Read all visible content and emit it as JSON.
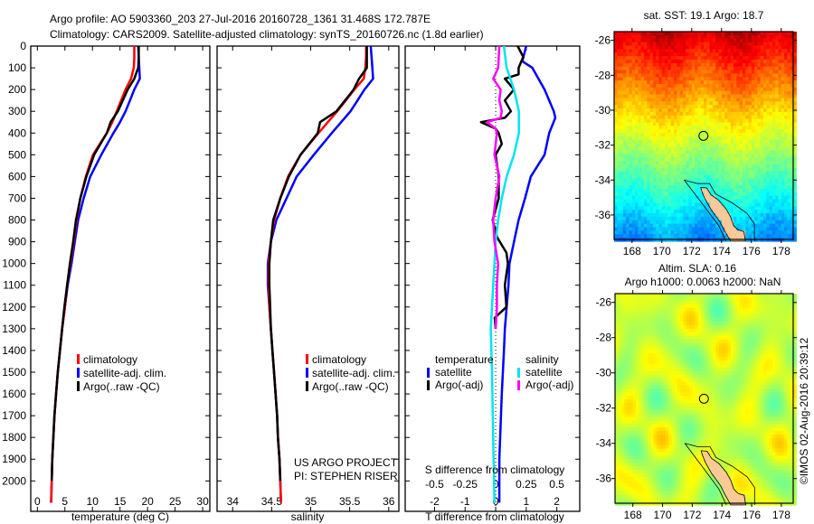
{
  "title": {
    "line1": "Argo profile: AO 5903360_203 27-Jul-2016 20160728_1361 31.468S 172.787E",
    "line2": "Climatology: CARS2009. Satellite-adjusted climatology: synTS_20160726.nc (1.8d earlier)"
  },
  "colors": {
    "climatology": "#ff0000",
    "satellite": "#0000ff",
    "argo": "#000000",
    "s_satellite": "#00e5ee",
    "s_argo": "#ff00ff",
    "land": "#fcc897"
  },
  "chart_data": [
    {
      "type": "line",
      "name": "temperature-profile",
      "xlabel": "temperature (deg C)",
      "ylabel": "",
      "xlim": [
        -1.2,
        31.3
      ],
      "ylim": [
        2140,
        0
      ],
      "xticks": [
        0,
        5,
        10,
        15,
        20,
        25,
        30
      ],
      "yticks": [
        0,
        100,
        200,
        300,
        400,
        500,
        600,
        700,
        800,
        900,
        1000,
        1100,
        1200,
        1300,
        1400,
        1500,
        1600,
        1700,
        1800,
        1900,
        2000
      ],
      "depth": [
        0,
        50,
        100,
        150,
        200,
        250,
        300,
        350,
        400,
        500,
        600,
        700,
        800,
        900,
        1000,
        1100,
        1200,
        1300,
        1400,
        1500,
        1600,
        1700,
        1800,
        1900,
        2000,
        2100
      ],
      "series": [
        {
          "name": "climatology",
          "color": "#ff0000",
          "values": [
            17.6,
            17.6,
            17.5,
            17.0,
            16.0,
            15.2,
            14.4,
            13.6,
            12.6,
            10.1,
            8.8,
            7.8,
            7.1,
            6.6,
            6.0,
            5.4,
            5.0,
            4.5,
            4.1,
            3.7,
            3.4,
            3.1,
            2.9,
            2.7,
            2.6,
            2.5
          ]
        },
        {
          "name": "satellite-adj. clim.",
          "color": "#0000ff",
          "values": [
            18.3,
            18.4,
            18.5,
            18.6,
            17.6,
            16.8,
            16.0,
            15.0,
            13.8,
            11.6,
            9.6,
            8.4,
            7.4,
            6.8,
            6.2,
            5.5,
            5.0,
            4.5,
            4.1,
            3.7,
            3.4,
            3.1,
            2.9,
            2.7,
            2.6,
            2.5
          ]
        },
        {
          "name": "Argo(..raw -QC)",
          "color": "#000000",
          "values": [
            18.4,
            18.4,
            18.3,
            17.6,
            16.4,
            15.5,
            14.6,
            13.3,
            12.6,
            10.3,
            8.9,
            7.8,
            7.0,
            6.5,
            5.9,
            5.4,
            4.9,
            4.5,
            4.1,
            3.7,
            3.4,
            3.1,
            2.9,
            2.7,
            2.6,
            null
          ]
        }
      ]
    },
    {
      "type": "line",
      "name": "salinity-profile",
      "xlabel": "salinity",
      "xlim": [
        33.8,
        36.13
      ],
      "ylim": [
        2140,
        0
      ],
      "xticks": [
        34,
        34.5,
        35,
        35.5,
        36
      ],
      "depth": [
        0,
        50,
        100,
        150,
        200,
        250,
        300,
        350,
        400,
        500,
        600,
        700,
        800,
        900,
        1000,
        1100,
        1200,
        1300,
        1400,
        1500,
        1600,
        1700,
        1800,
        1900,
        2000,
        2100
      ],
      "series": [
        {
          "name": "climatology",
          "color": "#ff0000",
          "values": [
            35.71,
            35.71,
            35.7,
            35.68,
            35.56,
            35.45,
            35.34,
            35.22,
            35.1,
            34.87,
            34.71,
            34.61,
            34.53,
            34.49,
            34.46,
            34.46,
            34.47,
            34.49,
            34.51,
            34.53,
            34.55,
            34.57,
            34.58,
            34.6,
            34.61,
            34.62
          ]
        },
        {
          "name": "satellite-adj. clim.",
          "color": "#0000ff",
          "values": [
            35.77,
            35.78,
            35.79,
            35.8,
            35.69,
            35.6,
            35.51,
            35.39,
            35.27,
            35.04,
            34.82,
            34.69,
            34.56,
            34.49,
            34.45,
            34.45,
            34.47,
            34.49,
            34.51,
            34.53,
            34.55,
            34.57,
            34.58,
            34.6,
            34.61,
            34.62
          ]
        },
        {
          "name": "Argo(..raw -QC)",
          "color": "#000000",
          "values": [
            35.72,
            35.72,
            35.72,
            35.62,
            35.55,
            35.44,
            35.33,
            35.12,
            35.09,
            34.87,
            34.72,
            34.61,
            34.52,
            34.49,
            34.47,
            34.47,
            34.48,
            34.49,
            34.51,
            34.53,
            34.55,
            34.57,
            34.58,
            34.6,
            34.61,
            null
          ]
        }
      ],
      "annotations": [
        "US ARGO PROJECT",
        "PI: STEPHEN RISER"
      ]
    },
    {
      "type": "line",
      "name": "difference-profile",
      "xlabel": "T difference from climatology",
      "x2label": "S difference from climatology",
      "xlim": [
        -2.96,
        2.75
      ],
      "ylim": [
        2140,
        0
      ],
      "xticks": [
        -2,
        -1,
        0,
        1,
        2
      ],
      "x2ticks": [
        -0.5,
        -0.25,
        0,
        0.25,
        0.5
      ],
      "x2tick_labels": [
        "-0.5",
        "-0.25",
        "0",
        "0.25",
        "0.5"
      ],
      "legend_headers": {
        "temperature": "temperature",
        "salinity": "salinity"
      },
      "series": [
        {
          "name": "satellite",
          "group": "temperature",
          "color": "#0000ff",
          "depth": [
            0,
            70,
            100,
            200,
            300,
            330,
            400,
            500,
            600,
            700,
            800,
            900,
            1000,
            1100,
            1200,
            1300,
            1400,
            1600,
            1900,
            2100
          ],
          "values": [
            1.0,
            0.87,
            1.2,
            1.6,
            1.9,
            1.95,
            1.75,
            1.6,
            1.15,
            0.96,
            0.75,
            0.6,
            0.45,
            0.42,
            0.36,
            0.3,
            0.27,
            0.2,
            0.12,
            0.12
          ]
        },
        {
          "name": "Argo(-adj)",
          "group": "temperature",
          "color": "#000000",
          "depth": [
            0,
            50,
            100,
            130,
            150,
            200,
            250,
            300,
            330,
            350,
            380,
            400,
            450,
            500,
            600,
            700,
            800,
            880,
            950,
            1000,
            1100,
            1200,
            1250,
            1300
          ],
          "values": [
            0.72,
            0.9,
            0.75,
            0.75,
            0.3,
            0.6,
            0.3,
            0.5,
            0.3,
            -0.48,
            0,
            0.1,
            0.2,
            0,
            0.1,
            0.1,
            -0.1,
            0.05,
            0.35,
            0.4,
            0.3,
            0.35,
            -0.03,
            0
          ]
        },
        {
          "name": "satellite",
          "group": "salinity",
          "color": "#00e5ee",
          "depth": [
            0,
            100,
            200,
            300,
            400,
            500,
            600,
            700,
            800,
            900,
            1000,
            1100,
            1200,
            1300,
            1500,
            1800,
            2100
          ],
          "values": [
            0.067,
            0.09,
            0.15,
            0.19,
            0.19,
            0.15,
            0.09,
            0.05,
            0.02,
            0,
            -0.01,
            -0.02,
            -0.03,
            -0.04,
            -0.03,
            -0.02,
            -0.01
          ]
        },
        {
          "name": "Argo(-adj)",
          "group": "salinity",
          "color": "#ff00ff",
          "depth": [
            0,
            100,
            150,
            200,
            250,
            300,
            330,
            350,
            380,
            400,
            500,
            600,
            700,
            800,
            900,
            1000,
            1100,
            1200,
            1300
          ],
          "values": [
            0.03,
            0.02,
            -0.02,
            0.04,
            0.03,
            0.05,
            0.04,
            -0.07,
            0,
            0.01,
            -0.01,
            0.03,
            0,
            -0.02,
            -0.01,
            0.02,
            0.01,
            0.01,
            0
          ]
        }
      ]
    },
    {
      "type": "heatmap",
      "name": "sst-map",
      "title": "sat. SST: 19.1 Argo: 18.7",
      "xlim": [
        166.8,
        178.8
      ],
      "ylim": [
        -37.4,
        -25.5
      ],
      "xticks": [
        168,
        170,
        172,
        174,
        176,
        178
      ],
      "yticks": [
        -26,
        -28,
        -30,
        -32,
        -34,
        -36
      ],
      "argo_location": {
        "lon": 172.787,
        "lat": -31.468
      }
    },
    {
      "type": "heatmap",
      "name": "sla-map",
      "title": "Altim. SLA: 0.16",
      "subtitle": "Argo h1000: 0.0063 h2000: NaN",
      "xlim": [
        166.8,
        178.8
      ],
      "ylim": [
        -37.4,
        -25.5
      ],
      "xticks": [
        168,
        170,
        172,
        174,
        176,
        178
      ],
      "yticks": [
        -26,
        -28,
        -30,
        -32,
        -34,
        -36
      ],
      "argo_location": {
        "lon": 172.787,
        "lat": -31.468
      }
    }
  ],
  "copyright": "©IMOS 02-Aug-2016 20:39:12"
}
